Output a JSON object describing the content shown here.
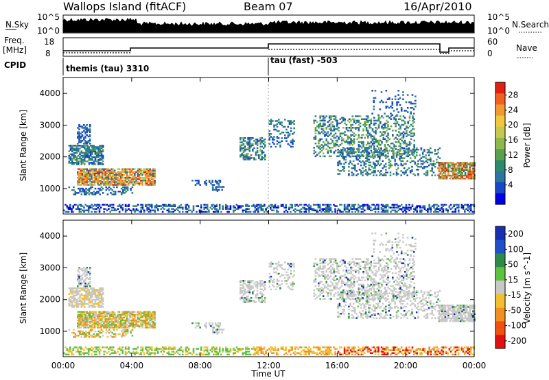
{
  "header": {
    "station": "Wallops Island (fitACF)",
    "beam": "Beam 07",
    "date": "16/Apr/2010"
  },
  "top_panel": {
    "nsky_label": "N.Sky",
    "nsky_ticks": [
      "10^5",
      "10^0"
    ],
    "nsearch_label": "N.Search",
    "nsearch_ticks": [
      "10^5",
      "10^0"
    ],
    "freq_label_1": "Freq.",
    "freq_label_2": "[MHz]",
    "freq_ticks": [
      "18",
      "8"
    ],
    "nave_label": "Nave",
    "nave_ticks": [
      "60",
      "0"
    ],
    "cpid_label": "CPID",
    "cpid_1": "themis (tau) 3310",
    "cpid_2": "tau (fast) -503"
  },
  "chart_data": [
    {
      "type": "heatmap",
      "ylabel": "Slant Range [km]",
      "ylim": [
        200,
        4500
      ],
      "y_ticks": [
        "1000",
        "2000",
        "3000",
        "4000"
      ],
      "colorbar_label": "Power [dB]",
      "colorbar_ticks": [
        "28",
        "24",
        "20",
        "16",
        "12",
        "8",
        "4"
      ],
      "colors": [
        "#0000e0",
        "#1848c8",
        "#2e74a0",
        "#2e8a6a",
        "#5aa050",
        "#8cb850",
        "#c8c850",
        "#f0c840",
        "#f09a30",
        "#f06020",
        "#e02010"
      ]
    },
    {
      "type": "heatmap",
      "ylabel": "Slant Range [km]",
      "ylim": [
        200,
        4500
      ],
      "y_ticks": [
        "1000",
        "2000",
        "3000",
        "4000"
      ],
      "colorbar_label": "Velocity [m s^-1]",
      "colorbar_ticks": [
        "200",
        "100",
        "50",
        "15",
        "-15",
        "-50",
        "-100",
        "-200"
      ],
      "colors": [
        "#1830b0",
        "#2050c8",
        "#2e8a4a",
        "#60c040",
        "#c8c8c8",
        "#f0c030",
        "#f09020",
        "#f05010",
        "#e01010"
      ]
    }
  ],
  "x_axis": {
    "label": "Time UT",
    "ticks": [
      "00:00",
      "04:00",
      "08:00",
      "12:00",
      "16:00",
      "20:00",
      "00:00"
    ]
  }
}
